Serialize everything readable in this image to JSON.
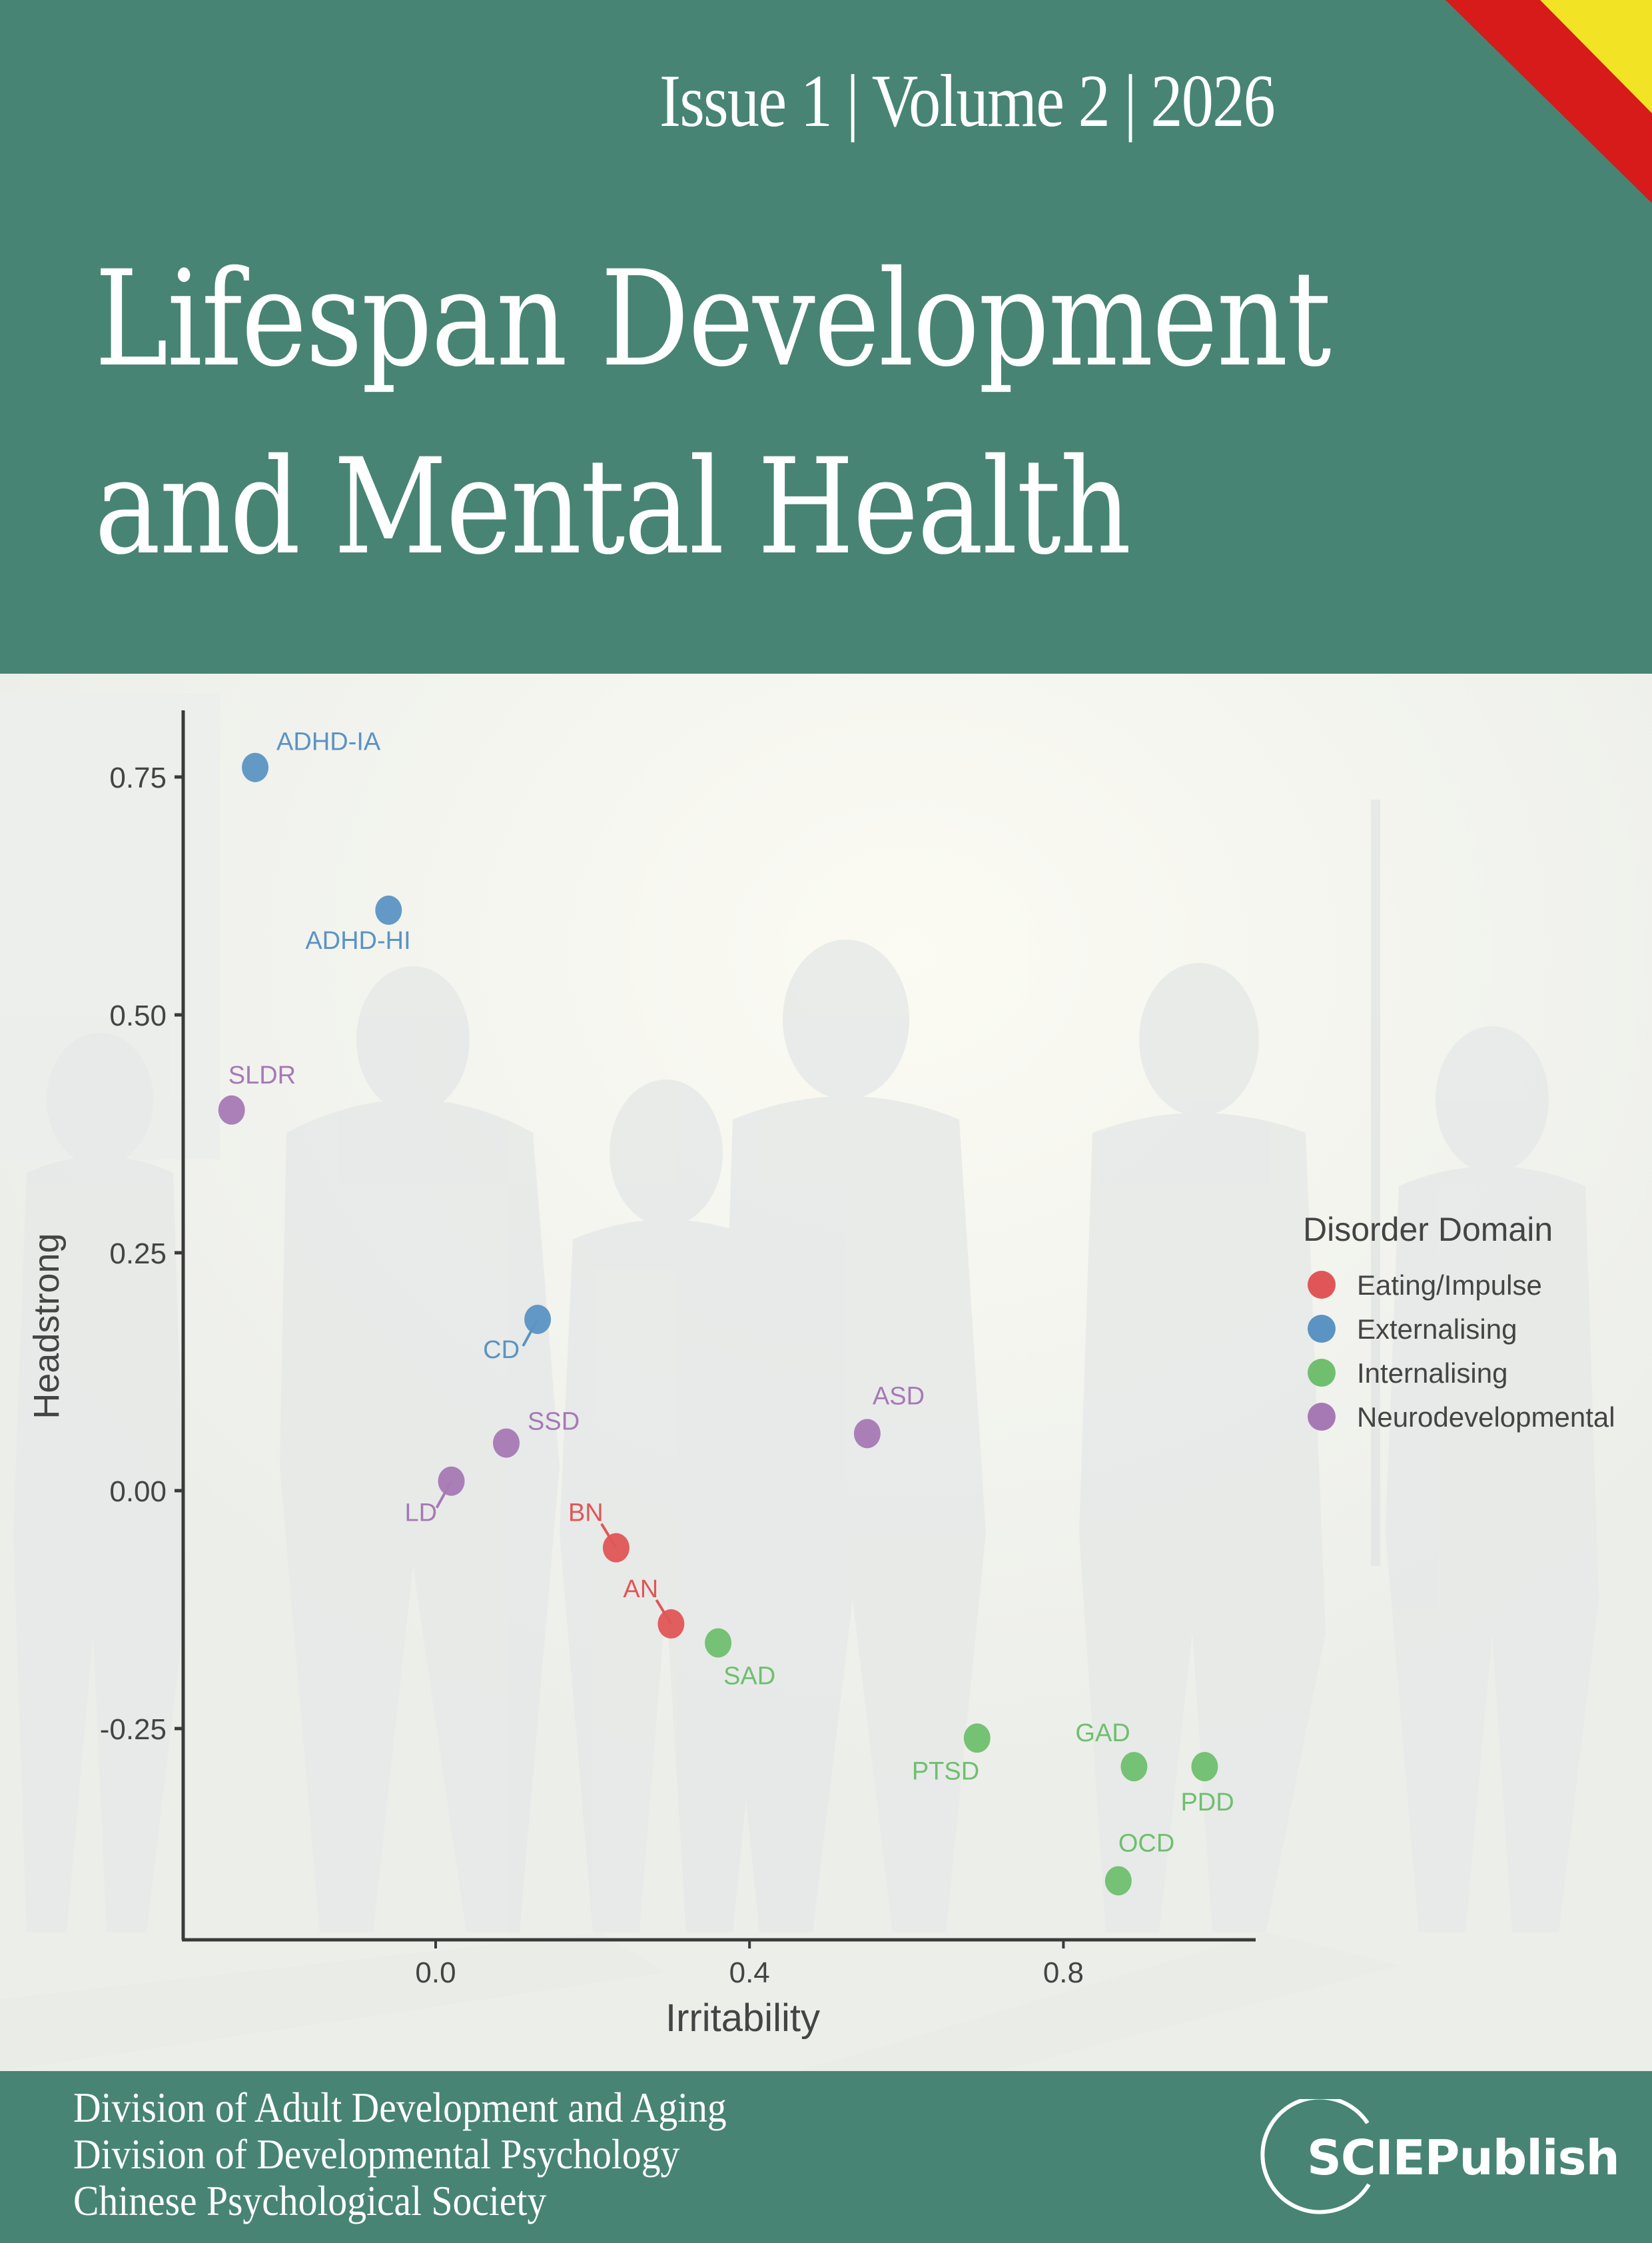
{
  "header": {
    "issue_line": "Issue 1 | Volume 2 | 2026",
    "title_line1": "Lifespan Development",
    "title_line2": "and Mental Health",
    "band_color": "#478473",
    "corner_colors": [
      "#d71a1a",
      "#f2e424"
    ]
  },
  "footer": {
    "organizations": [
      "Division of Adult Development and Aging",
      "Division of Developmental Psychology",
      "Chinese Psychological Society"
    ],
    "publisher_logo": "SCIEPublish"
  },
  "chart_data": {
    "type": "scatter",
    "title": "",
    "xlabel": "Irritability",
    "ylabel": "Headstrong",
    "xlim": [
      -0.32,
      1.045
    ],
    "ylim": [
      -0.47,
      0.82
    ],
    "x_ticks": [
      "0.0",
      "0.4",
      "0.8"
    ],
    "y_ticks": [
      "0.75",
      "0.50",
      "0.25",
      "0.00",
      "-0.25"
    ],
    "grid": false,
    "legend": {
      "title": "Disorder Domain",
      "position": "right",
      "entries": [
        {
          "label": "Eating/Impulse",
          "color": "#e05656"
        },
        {
          "label": "Externalising",
          "color": "#5b93c3"
        },
        {
          "label": "Internalising",
          "color": "#6fbf6f"
        },
        {
          "label": "Neurodevelopmental",
          "color": "#a679b5"
        }
      ]
    },
    "series": [
      {
        "name": "Eating/Impulse",
        "color": "#e05656",
        "points": [
          {
            "label": "BN",
            "x": 0.23,
            "y": -0.06
          },
          {
            "label": "AN",
            "x": 0.3,
            "y": -0.14
          }
        ]
      },
      {
        "name": "Externalising",
        "color": "#5b93c3",
        "points": [
          {
            "label": "ADHD-IA",
            "x": -0.23,
            "y": 0.76
          },
          {
            "label": "ADHD-HI",
            "x": -0.06,
            "y": 0.61
          },
          {
            "label": "CD",
            "x": 0.13,
            "y": 0.18
          }
        ]
      },
      {
        "name": "Internalising",
        "color": "#6fbf6f",
        "points": [
          {
            "label": "SAD",
            "x": 0.36,
            "y": -0.16
          },
          {
            "label": "PTSD",
            "x": 0.69,
            "y": -0.26
          },
          {
            "label": "GAD",
            "x": 0.89,
            "y": -0.29
          },
          {
            "label": "PDD",
            "x": 0.98,
            "y": -0.29
          },
          {
            "label": "OCD",
            "x": 0.87,
            "y": -0.41
          }
        ]
      },
      {
        "name": "Neurodevelopmental",
        "color": "#a679b5",
        "points": [
          {
            "label": "SLDR",
            "x": -0.26,
            "y": 0.4
          },
          {
            "label": "SSD",
            "x": 0.09,
            "y": 0.05
          },
          {
            "label": "LD",
            "x": 0.02,
            "y": 0.01
          },
          {
            "label": "ASD",
            "x": 0.55,
            "y": 0.06
          }
        ]
      }
    ]
  }
}
